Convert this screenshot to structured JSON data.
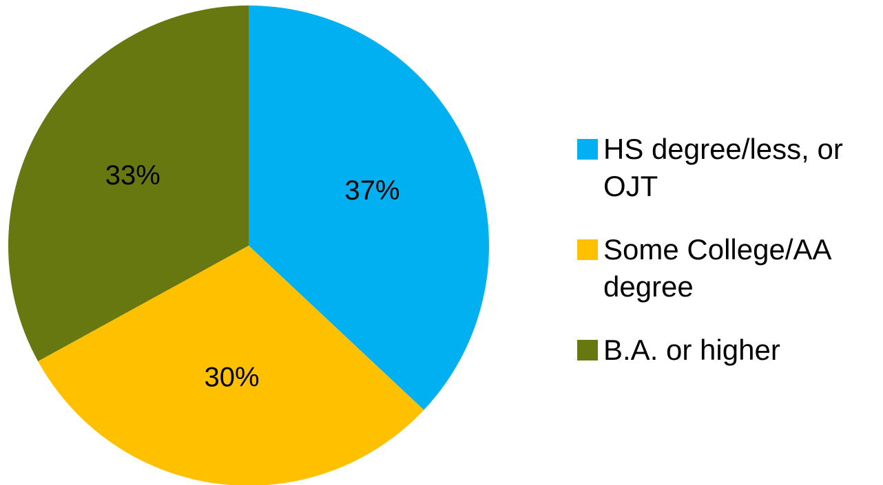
{
  "chart_data": {
    "type": "pie",
    "categories": [
      "HS degree/less, or OJT",
      "Some College/AA degree",
      "B.A. or higher"
    ],
    "values": [
      37,
      30,
      33
    ],
    "value_labels": [
      "37%",
      "30%",
      "33%"
    ],
    "colors": [
      "#00b0f0",
      "#ffc000",
      "#66780f"
    ],
    "legend": "right"
  }
}
